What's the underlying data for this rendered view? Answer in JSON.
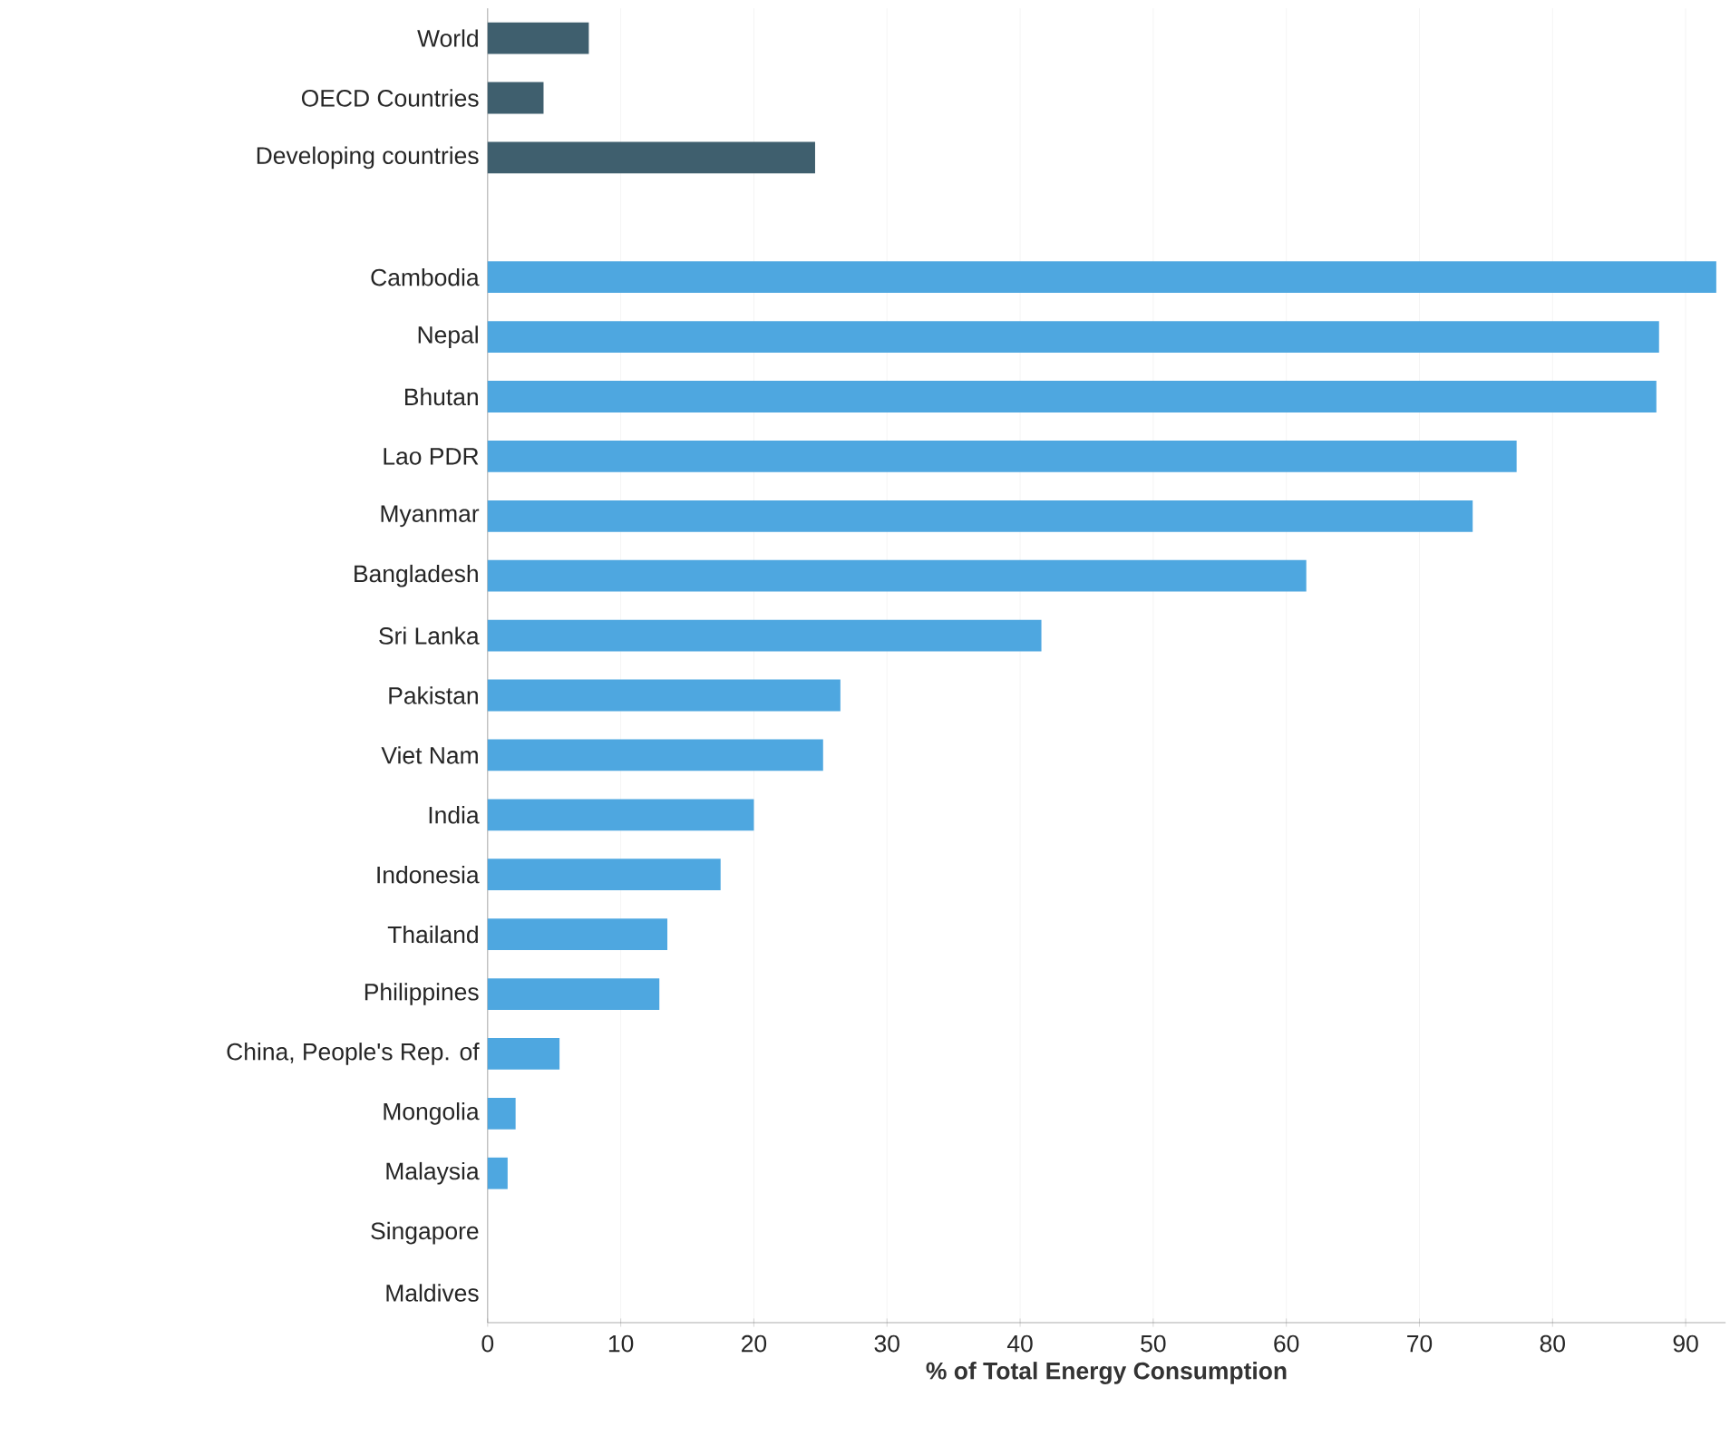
{
  "chart_data": {
    "type": "bar",
    "orientation": "horizontal",
    "xlabel": "% of Total Energy Consumption",
    "categories": [
      "World",
      "OECD Countries",
      "Developing countries",
      null,
      "Cambodia",
      "Nepal",
      "Bhutan",
      "Lao PDR",
      "Myanmar",
      "Bangladesh",
      "Sri Lanka",
      "Pakistan",
      "Viet Nam",
      "India",
      "Indonesia",
      "Thailand",
      "Philippines",
      "China, People's Rep. of",
      "Mongolia",
      "Malaysia",
      "Singapore",
      "Maldives"
    ],
    "values": [
      7.6,
      4.2,
      24.6,
      null,
      92.3,
      88.0,
      87.8,
      77.3,
      74.0,
      61.5,
      41.6,
      26.5,
      25.2,
      20.0,
      17.5,
      13.5,
      12.9,
      5.4,
      2.1,
      1.5,
      0,
      0
    ],
    "colors": [
      "#3f5f6e",
      "#3f5f6e",
      "#3f5f6e",
      "#4ea7e0",
      "#4ea7e0",
      "#4ea7e0",
      "#4ea7e0",
      "#4ea7e0",
      "#4ea7e0",
      "#4ea7e0",
      "#4ea7e0",
      "#4ea7e0",
      "#4ea7e0",
      "#4ea7e0",
      "#4ea7e0",
      "#4ea7e0",
      "#4ea7e0",
      "#4ea7e0",
      "#4ea7e0",
      "#4ea7e0",
      "#4ea7e0",
      "#4ea7e0"
    ],
    "xlim": [
      0,
      93
    ],
    "xticks": [
      0,
      10,
      20,
      30,
      40,
      50,
      60,
      70,
      80,
      90
    ],
    "grid": "x"
  }
}
